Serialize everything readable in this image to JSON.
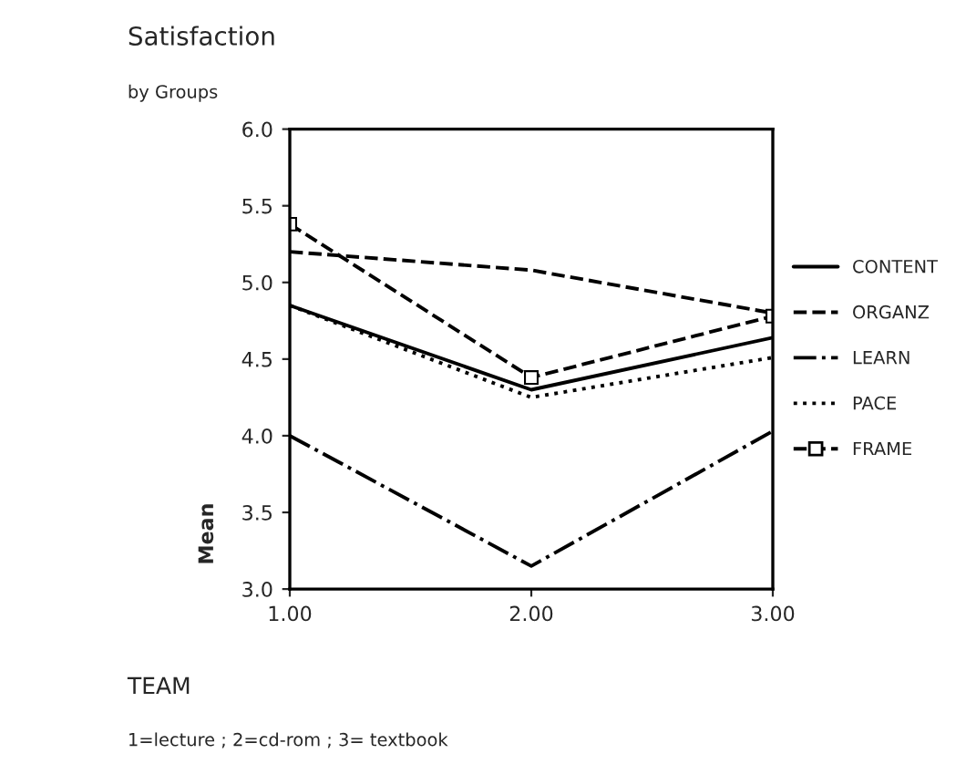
{
  "chart_data": {
    "type": "line",
    "title": "Satisfaction",
    "subtitle": "by Groups",
    "xlabel": "TEAM",
    "ylabel": "Mean",
    "x": [
      1,
      2,
      3
    ],
    "series": [
      {
        "name": "CONTENT",
        "color": "#000000",
        "line_style": "solid",
        "values": [
          4.85,
          4.3,
          4.64
        ]
      },
      {
        "name": "ORGANZ",
        "color": "#000000",
        "line_style": "dashed",
        "values": [
          5.2,
          5.08,
          4.8
        ]
      },
      {
        "name": "LEARN",
        "color": "#000000",
        "line_style": "dashdot",
        "values": [
          4.0,
          3.15,
          4.03
        ]
      },
      {
        "name": "PACE",
        "color": "#000000",
        "line_style": "dotted",
        "values": [
          4.85,
          4.25,
          4.51
        ]
      },
      {
        "name": "FRAME",
        "color": "#000000",
        "line_style": "dashed",
        "marker": "square",
        "values": [
          5.38,
          4.38,
          4.78
        ]
      }
    ],
    "xlim": [
      1,
      3
    ],
    "xticks": [
      {
        "value": 1,
        "label": "1.00"
      },
      {
        "value": 2,
        "label": "2.00"
      },
      {
        "value": 3,
        "label": "3.00"
      }
    ],
    "ylim": [
      3,
      6
    ],
    "yticks": [
      {
        "value": 3,
        "label": "3.0"
      },
      {
        "value": 3.5,
        "label": "3.5"
      },
      {
        "value": 4,
        "label": "4.0"
      },
      {
        "value": 4.5,
        "label": "4.5"
      },
      {
        "value": 5,
        "label": "5.0"
      },
      {
        "value": 5.5,
        "label": "5.5"
      },
      {
        "value": 6,
        "label": "6.0"
      }
    ],
    "grid": false,
    "legend": "right",
    "annotations": [
      "1=lecture ; 2=cd-rom ; 3= textbook"
    ]
  }
}
